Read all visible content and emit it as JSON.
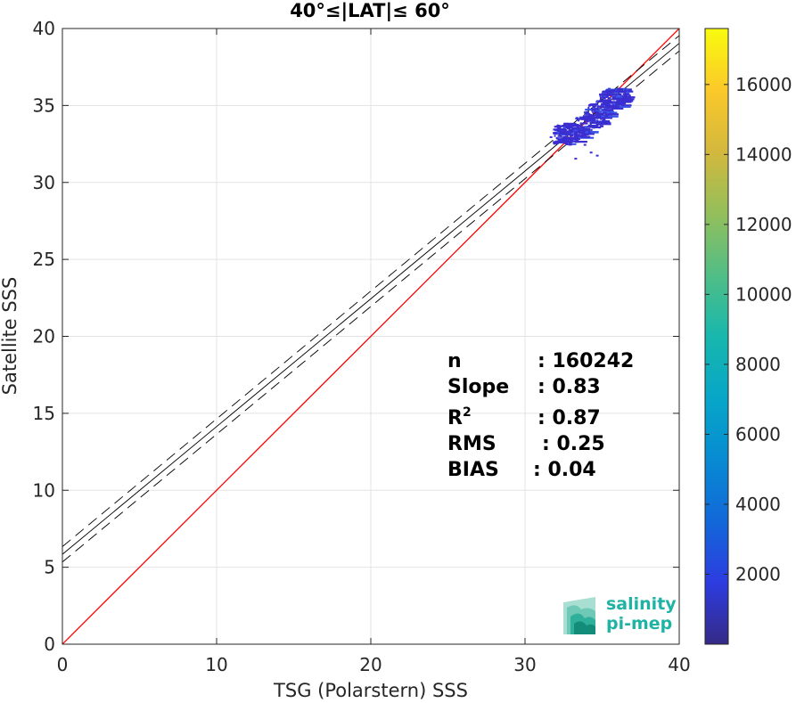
{
  "chart_data": {
    "type": "scatter",
    "title": "40°≤|LAT|≤ 60°",
    "xlabel": "TSG (Polarstern) SSS",
    "ylabel": "Satellite SSS",
    "xlim": [
      0,
      40
    ],
    "ylim": [
      0,
      40
    ],
    "xticks": [
      0,
      10,
      20,
      30,
      40
    ],
    "yticks": [
      0,
      5,
      10,
      15,
      20,
      25,
      30,
      35,
      40
    ],
    "grid": true,
    "colorbar": {
      "range": [
        0,
        17600
      ],
      "ticks": [
        "2000",
        "4000",
        "6000",
        "8000",
        "10000",
        "12000",
        "14000",
        "16000"
      ],
      "colormap": "parula"
    },
    "reference_line": {
      "type": "1:1",
      "color": "#ff0000"
    },
    "regression_line": {
      "slope": 0.83,
      "intercept": 5.84,
      "color": "#000000"
    },
    "confidence_band": {
      "offset": 0.5,
      "style": "dashed"
    },
    "density_cluster": {
      "x_range": [
        31.5,
        37.0
      ],
      "y_range": [
        32.5,
        36.2
      ],
      "center": [
        34.5,
        34.5
      ],
      "color": "#3b2ed1"
    },
    "stats": [
      {
        "label": "n",
        "value": ": 160242"
      },
      {
        "label": "Slope",
        "value": ": 0.83"
      },
      {
        "label": "R",
        "sup": "2",
        "value": ": 0.87"
      },
      {
        "label": "RMS",
        "value": ": 0.25"
      },
      {
        "label": "BIAS",
        "value": ": 0.04"
      }
    ]
  },
  "logo": {
    "line1": "salinity",
    "line2": "pi-mep"
  }
}
